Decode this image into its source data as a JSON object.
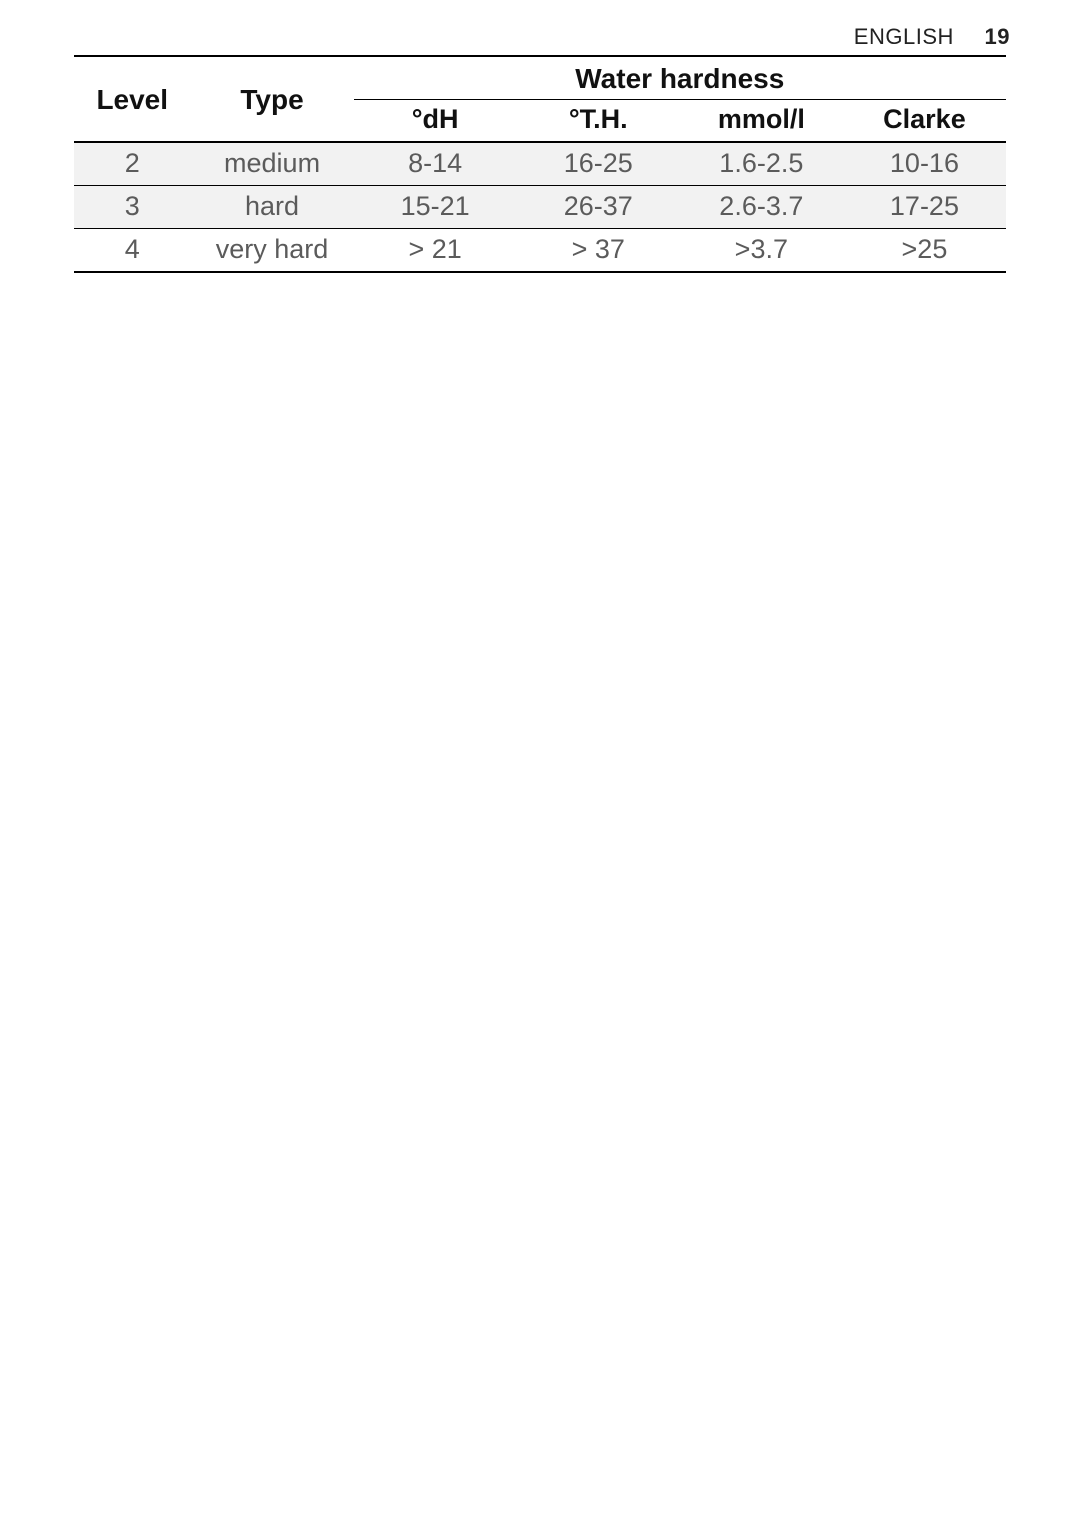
{
  "header": {
    "language": "ENGLISH",
    "page_number": "19"
  },
  "table": {
    "columns": {
      "level": "Level",
      "type": "Type",
      "group": "Water hardness",
      "dh": "°dH",
      "th": "°T.H.",
      "mmol": "mmol/l",
      "clarke": "Clarke"
    },
    "rows": [
      {
        "level": "2",
        "type": "medium",
        "dh": "8-14",
        "th": "16-25",
        "mmol": "1.6-2.5",
        "clarke": "10-16",
        "shaded": true
      },
      {
        "level": "3",
        "type": "hard",
        "dh": "15-21",
        "th": "26-37",
        "mmol": "2.6-3.7",
        "clarke": "17-25",
        "shaded": true
      },
      {
        "level": "4",
        "type": "very hard",
        "dh": "> 21",
        "th": "> 37",
        "mmol": ">3.7",
        "clarke": ">25",
        "shaded": false
      }
    ],
    "style": {
      "header_fontsize_pt": 21,
      "body_fontsize_pt": 20,
      "border_color": "#000000",
      "shade_color": "#f2f2f2",
      "body_text_color": "#5b5b5b",
      "header_text_color": "#111111",
      "background_color": "#ffffff"
    }
  }
}
